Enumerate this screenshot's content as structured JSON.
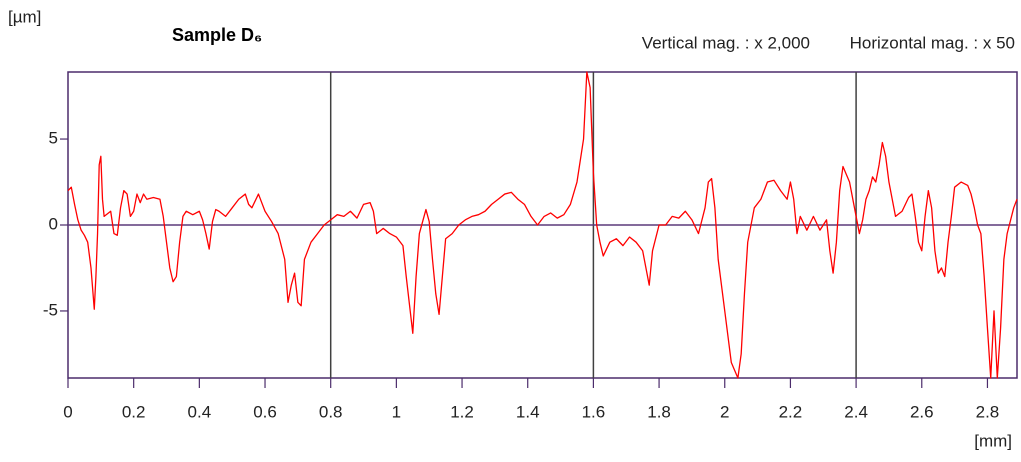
{
  "chart_data": {
    "type": "line",
    "title": "Sample D₆",
    "y_unit": "[µm]",
    "x_unit": "[mm]",
    "annotations": [
      "Vertical mag. : x 2,000",
      "Horizontal mag. : x 50"
    ],
    "color": "#ff0000",
    "grid_color": "#404040",
    "zero_line_color": "#5b3a7a",
    "xlim": [
      0,
      2.89
    ],
    "ylim": [
      -8.9,
      8.9
    ],
    "xticks": [
      0,
      0.2,
      0.4,
      0.6,
      0.8,
      1,
      1.2,
      1.4,
      1.6,
      1.8,
      2,
      2.2,
      2.4,
      2.6,
      2.8
    ],
    "yticks": [
      -5,
      0,
      5
    ],
    "xgrid_lines": [
      0.8,
      1.6,
      2.4
    ],
    "ygrid_lines": [
      0
    ],
    "x": [
      0,
      0.01,
      0.02,
      0.03,
      0.04,
      0.05,
      0.06,
      0.07,
      0.08,
      0.085,
      0.09,
      0.095,
      0.1,
      0.105,
      0.11,
      0.13,
      0.14,
      0.15,
      0.16,
      0.17,
      0.18,
      0.19,
      0.2,
      0.21,
      0.22,
      0.23,
      0.24,
      0.26,
      0.28,
      0.29,
      0.3,
      0.31,
      0.32,
      0.33,
      0.34,
      0.35,
      0.36,
      0.38,
      0.4,
      0.41,
      0.42,
      0.43,
      0.44,
      0.45,
      0.46,
      0.48,
      0.5,
      0.52,
      0.54,
      0.55,
      0.56,
      0.58,
      0.6,
      0.62,
      0.64,
      0.66,
      0.67,
      0.68,
      0.69,
      0.7,
      0.71,
      0.72,
      0.74,
      0.76,
      0.78,
      0.8,
      0.82,
      0.84,
      0.86,
      0.88,
      0.9,
      0.92,
      0.93,
      0.94,
      0.96,
      0.98,
      1,
      1.02,
      1.03,
      1.05,
      1.06,
      1.07,
      1.08,
      1.09,
      1.1,
      1.11,
      1.12,
      1.13,
      1.14,
      1.15,
      1.17,
      1.19,
      1.21,
      1.23,
      1.25,
      1.27,
      1.29,
      1.31,
      1.33,
      1.35,
      1.37,
      1.39,
      1.41,
      1.43,
      1.45,
      1.47,
      1.49,
      1.51,
      1.53,
      1.55,
      1.57,
      1.58,
      1.59,
      1.6,
      1.61,
      1.62,
      1.63,
      1.65,
      1.67,
      1.69,
      1.71,
      1.73,
      1.75,
      1.77,
      1.78,
      1.8,
      1.82,
      1.84,
      1.86,
      1.88,
      1.9,
      1.92,
      1.94,
      1.95,
      1.96,
      1.97,
      1.98,
      2,
      2.02,
      2.04,
      2.05,
      2.06,
      2.07,
      2.09,
      2.11,
      2.13,
      2.15,
      2.17,
      2.19,
      2.2,
      2.21,
      2.22,
      2.23,
      2.25,
      2.27,
      2.29,
      2.31,
      2.32,
      2.33,
      2.34,
      2.35,
      2.36,
      2.38,
      2.4,
      2.41,
      2.42,
      2.43,
      2.44,
      2.45,
      2.46,
      2.47,
      2.48,
      2.49,
      2.5,
      2.51,
      2.52,
      2.54,
      2.56,
      2.57,
      2.58,
      2.59,
      2.6,
      2.61,
      2.62,
      2.63,
      2.64,
      2.65,
      2.66,
      2.67,
      2.68,
      2.69,
      2.7,
      2.72,
      2.74,
      2.75,
      2.76,
      2.77,
      2.78,
      2.79,
      2.8,
      2.81,
      2.82,
      2.83,
      2.84,
      2.85,
      2.86,
      2.88,
      2.89
    ],
    "values": [
      2.0,
      2.2,
      1.2,
      0.3,
      -0.3,
      -0.6,
      -1.0,
      -2.5,
      -4.9,
      -3.0,
      -0.5,
      3.5,
      4.0,
      1.5,
      0.5,
      0.8,
      -0.5,
      -0.6,
      1.0,
      2.0,
      1.8,
      0.5,
      0.8,
      1.8,
      1.3,
      1.8,
      1.5,
      1.6,
      1.5,
      0.5,
      -1.0,
      -2.5,
      -3.3,
      -3.0,
      -1.0,
      0.5,
      0.8,
      0.6,
      0.8,
      0.3,
      -0.5,
      -1.4,
      0.2,
      0.9,
      0.8,
      0.5,
      1.0,
      1.5,
      1.8,
      1.2,
      1.0,
      1.8,
      0.8,
      0.2,
      -0.5,
      -2.0,
      -4.5,
      -3.5,
      -2.8,
      -4.5,
      -4.7,
      -2.0,
      -1.0,
      -0.5,
      0.0,
      0.3,
      0.6,
      0.5,
      0.8,
      0.4,
      1.2,
      1.3,
      0.8,
      -0.5,
      -0.2,
      -0.5,
      -0.7,
      -1.2,
      -3.0,
      -6.3,
      -3.0,
      -0.5,
      0.2,
      0.9,
      0.2,
      -2.0,
      -4.0,
      -5.2,
      -3.0,
      -0.8,
      -0.5,
      0.0,
      0.3,
      0.5,
      0.6,
      0.8,
      1.2,
      1.5,
      1.8,
      1.9,
      1.5,
      1.2,
      0.5,
      0.0,
      0.5,
      0.7,
      0.4,
      0.6,
      1.2,
      2.5,
      5.0,
      8.9,
      8.0,
      3.0,
      0.0,
      -1.0,
      -1.8,
      -1.0,
      -0.8,
      -1.2,
      -0.7,
      -1.0,
      -1.5,
      -3.5,
      -1.5,
      0.0,
      0.0,
      0.5,
      0.4,
      0.8,
      0.3,
      -0.5,
      1.0,
      2.5,
      2.7,
      1.0,
      -2.0,
      -5.0,
      -8.0,
      -8.9,
      -7.5,
      -4.0,
      -1.0,
      1.0,
      1.5,
      2.5,
      2.6,
      2.0,
      1.5,
      2.5,
      1.5,
      -0.5,
      0.5,
      -0.3,
      0.5,
      -0.3,
      0.3,
      -1.5,
      -2.8,
      -1.0,
      2.0,
      3.4,
      2.5,
      0.5,
      -0.5,
      0.3,
      1.5,
      2.0,
      2.8,
      2.5,
      3.5,
      4.8,
      4.0,
      2.5,
      1.5,
      0.5,
      0.8,
      1.6,
      1.8,
      0.5,
      -1.0,
      -1.5,
      0.5,
      2.0,
      1.0,
      -1.5,
      -2.8,
      -2.5,
      -3.0,
      -1.0,
      0.5,
      2.2,
      2.5,
      2.3,
      1.8,
      1.0,
      0.0,
      -0.5,
      -3.0,
      -6.0,
      -8.9,
      -5.0,
      -8.9,
      -6.0,
      -2.0,
      -0.5,
      1.0,
      1.5
    ]
  }
}
